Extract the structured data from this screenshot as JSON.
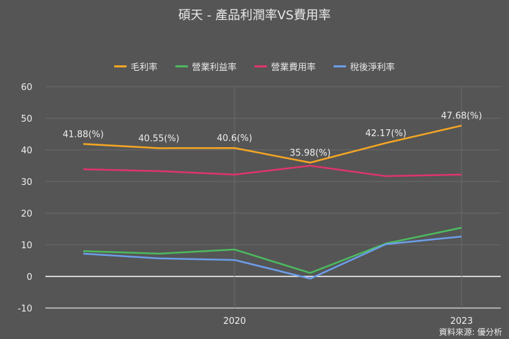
{
  "chart_data": {
    "type": "line",
    "title": "碩天 - 產品利潤率VS費用率",
    "categories": [
      "",
      "",
      "2020",
      "",
      "",
      "2023"
    ],
    "ylim": [
      -10,
      60
    ],
    "yticks": [
      60,
      50,
      40,
      30,
      20,
      10,
      0,
      -10
    ],
    "grid": true,
    "legend_position": "top",
    "series": [
      {
        "name": "毛利率",
        "color": "#f5a623",
        "values": [
          41.88,
          40.55,
          40.6,
          35.98,
          42.17,
          47.68
        ],
        "labels": [
          "41.88(%)",
          "40.55(%)",
          "40.6(%)",
          "35.98(%)",
          "42.17(%)",
          "47.68(%)"
        ]
      },
      {
        "name": "營業利益率",
        "color": "#4cbb5f",
        "values": [
          8.0,
          7.2,
          8.5,
          1.1,
          10.4,
          15.4
        ]
      },
      {
        "name": "營業費用率",
        "color": "#e0356b",
        "values": [
          33.9,
          33.3,
          32.2,
          35.0,
          31.7,
          32.2
        ]
      },
      {
        "name": "稅後淨利率",
        "color": "#6d9eeb",
        "values": [
          7.2,
          5.7,
          5.2,
          -0.7,
          10.2,
          12.6
        ]
      }
    ]
  },
  "source": "資料來源: 優分析"
}
